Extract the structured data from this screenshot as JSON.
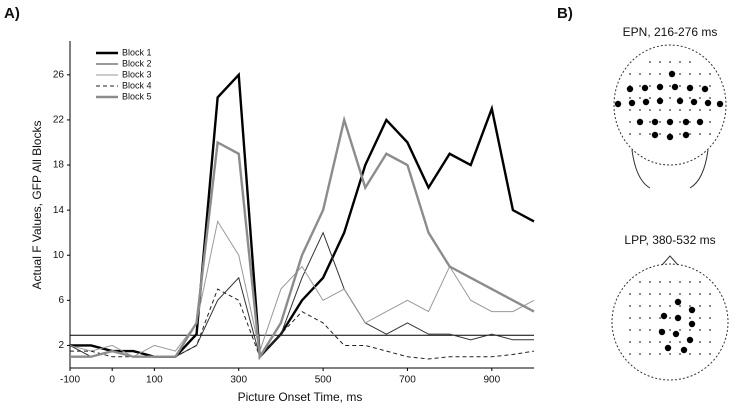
{
  "chart_data": {
    "type": "line",
    "panel_label": "A)",
    "xlabel": "Picture Onset Time, ms",
    "ylabel": "Actual F Values, GFP All Blocks",
    "x": [
      -100,
      -50,
      0,
      50,
      100,
      150,
      200,
      250,
      300,
      350,
      400,
      450,
      500,
      550,
      600,
      650,
      700,
      750,
      800,
      850,
      900,
      950,
      1000
    ],
    "series": [
      {
        "name": "Block 1",
        "color": "#000000",
        "line_width": 2.4,
        "dash": "none",
        "values": [
          2,
          2,
          1.5,
          1.5,
          1,
          1,
          3,
          24,
          26,
          1,
          3,
          6,
          8,
          12,
          18,
          22,
          20,
          16,
          19,
          18,
          23,
          14,
          13
        ]
      },
      {
        "name": "Block 2",
        "color": "#333333",
        "line_width": 1,
        "dash": "none",
        "values": [
          2,
          1,
          1.5,
          1,
          1,
          1,
          2,
          6,
          8,
          1,
          3,
          8,
          12,
          7,
          4,
          3,
          4,
          3,
          3,
          2.5,
          3,
          2.5,
          2.5
        ]
      },
      {
        "name": "Block 3",
        "color": "#999999",
        "line_width": 1,
        "dash": "none",
        "values": [
          2,
          1.5,
          2,
          1,
          2,
          1.5,
          4,
          13,
          10,
          1.5,
          7,
          9,
          6,
          7,
          4,
          5,
          6,
          5,
          9,
          6,
          5,
          5,
          6
        ]
      },
      {
        "name": "Block 4",
        "color": "#222222",
        "line_width": 1,
        "dash": "4 3",
        "values": [
          1.5,
          1.5,
          1,
          1,
          1,
          1,
          2,
          7,
          6,
          1,
          3,
          5,
          4,
          2,
          2,
          1.5,
          1,
          0.8,
          1,
          1,
          1,
          1.2,
          1.5
        ]
      },
      {
        "name": "Block 5",
        "color": "#8c8c8c",
        "line_width": 2.4,
        "dash": "none",
        "values": [
          1,
          1,
          1.5,
          1,
          1,
          1,
          4,
          20,
          19,
          1,
          4,
          10,
          14,
          22,
          16,
          19,
          18,
          12,
          9,
          8,
          7,
          6,
          5
        ]
      }
    ],
    "hline": 2.9,
    "xlim": [
      -100,
      1000
    ],
    "xticks": [
      -100,
      0,
      100,
      300,
      500,
      700,
      900
    ],
    "ylim": [
      0,
      29
    ],
    "yticks": [
      2,
      6,
      10,
      14,
      18,
      22,
      26
    ],
    "legend": "upper left"
  },
  "topomaps": {
    "panel_label": "B)",
    "maps": [
      {
        "title": "EPN, 216-276 ms"
      },
      {
        "title": "LPP, 380-532 ms"
      }
    ]
  }
}
